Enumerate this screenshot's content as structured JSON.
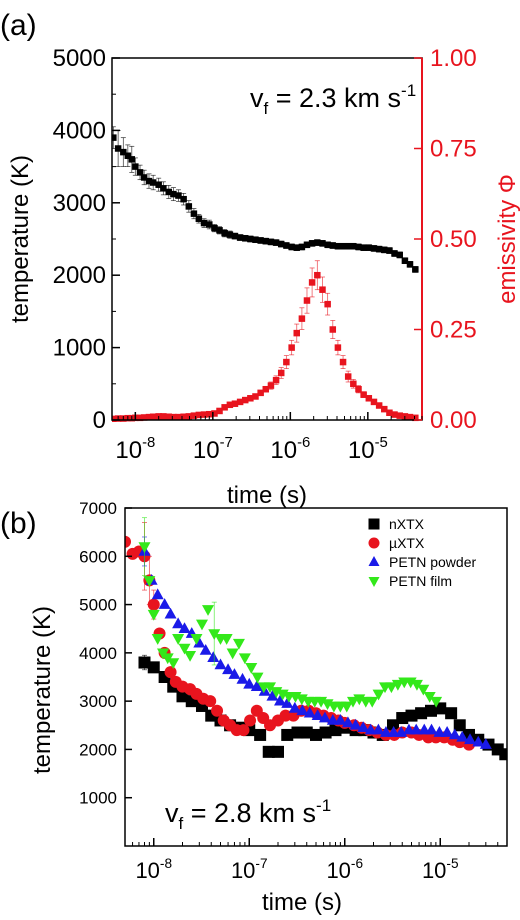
{
  "chart_data": [
    {
      "panel_label": "(a)",
      "type": "scatter",
      "annotation": {
        "prefix": "v",
        "subscript": "f",
        "middle": " = 2.3 km s",
        "superscript": "-1"
      },
      "xlabel": "time (s)",
      "x_scale": "log",
      "xlim": [
        5e-09,
        5e-05
      ],
      "x_ticks": [
        {
          "exp": "-8",
          "value": 1e-08
        },
        {
          "exp": "-7",
          "value": 1e-07
        },
        {
          "exp": "-6",
          "value": 1e-06
        },
        {
          "exp": "-5",
          "value": 1e-05
        }
      ],
      "x_tick_base": "10",
      "ylabel": "temperature (K)",
      "ylim": [
        0,
        5000
      ],
      "y_ticks": [
        "0",
        "1000",
        "2000",
        "3000",
        "4000",
        "5000"
      ],
      "y2label": "emissivity Φ",
      "y2lim": [
        0,
        1
      ],
      "y2_ticks": [
        "0.00",
        "0.25",
        "0.50",
        "0.75",
        "1.00"
      ],
      "y2_color": "#e8141e",
      "series": [
        {
          "color": "#000000",
          "marker": "square",
          "axis": "left",
          "x": [
            5.2e-09,
            6e-09,
            7e-09,
            8e-09,
            9e-09,
            1e-08,
            1.15e-08,
            1.3e-08,
            1.5e-08,
            1.7e-08,
            2e-08,
            2.3e-08,
            2.7e-08,
            3.1e-08,
            3.6e-08,
            4.2e-08,
            4.9e-08,
            5.7e-08,
            6.6e-08,
            7.7e-08,
            9e-08,
            1.05e-07,
            1.22e-07,
            1.42e-07,
            1.66e-07,
            1.93e-07,
            2.25e-07,
            2.62e-07,
            3.05e-07,
            3.55e-07,
            4.14e-07,
            4.82e-07,
            5.62e-07,
            6.55e-07,
            7.63e-07,
            8.89e-07,
            1.04e-06,
            1.21e-06,
            1.41e-06,
            1.64e-06,
            1.91e-06,
            2.23e-06,
            2.6e-06,
            3.03e-06,
            3.53e-06,
            4.11e-06,
            4.79e-06,
            5.58e-06,
            6.5e-06,
            7.58e-06,
            8.83e-06,
            1.03e-05,
            1.2e-05,
            1.4e-05,
            1.63e-05,
            1.9e-05,
            2.21e-05,
            2.58e-05,
            3.01e-05,
            3.5e-05,
            4.1e-05
          ],
          "y": [
            3900,
            3750,
            3700,
            3650,
            3600,
            3500,
            3420,
            3350,
            3300,
            3280,
            3250,
            3200,
            3150,
            3120,
            3100,
            3050,
            2950,
            2850,
            2780,
            2720,
            2700,
            2650,
            2620,
            2580,
            2560,
            2540,
            2520,
            2510,
            2500,
            2490,
            2480,
            2470,
            2460,
            2450,
            2430,
            2410,
            2390,
            2380,
            2390,
            2420,
            2440,
            2450,
            2440,
            2420,
            2410,
            2400,
            2400,
            2400,
            2400,
            2390,
            2380,
            2380,
            2370,
            2360,
            2350,
            2340,
            2300,
            2280,
            2200,
            2150,
            2080
          ],
          "err": [
            150,
            250,
            200,
            150,
            180,
            120,
            100,
            100,
            100,
            100,
            90,
            90,
            90,
            90,
            80,
            80,
            80,
            70,
            60,
            60,
            60,
            50,
            50,
            50,
            50,
            40,
            40,
            40,
            40,
            40,
            40,
            40,
            40,
            40,
            40,
            40,
            40,
            40,
            40,
            40,
            40,
            40,
            40,
            40,
            40,
            40,
            40,
            40,
            40,
            40,
            40,
            40,
            40,
            40,
            40,
            40,
            40,
            40,
            40,
            40,
            40
          ]
        },
        {
          "color": "#e8141e",
          "marker": "square",
          "axis": "right",
          "x": [
            5.2e-09,
            6e-09,
            7e-09,
            8e-09,
            9e-09,
            1e-08,
            1.15e-08,
            1.3e-08,
            1.5e-08,
            1.7e-08,
            2e-08,
            2.3e-08,
            2.7e-08,
            3.1e-08,
            3.6e-08,
            4.2e-08,
            4.9e-08,
            5.7e-08,
            6.6e-08,
            7.7e-08,
            9e-08,
            1.05e-07,
            1.22e-07,
            1.42e-07,
            1.66e-07,
            1.93e-07,
            2.25e-07,
            2.62e-07,
            3.05e-07,
            3.55e-07,
            4.14e-07,
            4.82e-07,
            5.62e-07,
            6.55e-07,
            7.63e-07,
            8.89e-07,
            1.04e-06,
            1.21e-06,
            1.41e-06,
            1.64e-06,
            1.91e-06,
            2.23e-06,
            2.6e-06,
            3.03e-06,
            3.53e-06,
            4.11e-06,
            4.79e-06,
            5.58e-06,
            6.5e-06,
            7.58e-06,
            8.83e-06,
            1.03e-05,
            1.2e-05,
            1.4e-05,
            1.63e-05,
            1.9e-05,
            2.21e-05,
            2.58e-05,
            3.01e-05,
            3.5e-05,
            4.1e-05
          ],
          "y": [
            0.003,
            0.004,
            0.004,
            0.005,
            0.005,
            0.006,
            0.006,
            0.007,
            0.008,
            0.009,
            0.01,
            0.01,
            0.009,
            0.008,
            0.008,
            0.009,
            0.01,
            0.012,
            0.014,
            0.015,
            0.016,
            0.018,
            0.025,
            0.035,
            0.042,
            0.045,
            0.05,
            0.055,
            0.06,
            0.065,
            0.075,
            0.085,
            0.095,
            0.11,
            0.13,
            0.16,
            0.2,
            0.24,
            0.28,
            0.33,
            0.38,
            0.4,
            0.36,
            0.32,
            0.25,
            0.2,
            0.16,
            0.12,
            0.1,
            0.085,
            0.07,
            0.06,
            0.05,
            0.04,
            0.03,
            0.02,
            0.015,
            0.012,
            0.01,
            0.008,
            0.006
          ],
          "err": [
            0,
            0,
            0,
            0,
            0,
            0,
            0,
            0,
            0,
            0,
            0,
            0,
            0,
            0,
            0,
            0,
            0,
            0,
            0,
            0,
            0,
            0,
            0,
            0,
            0,
            0,
            0,
            0,
            0,
            0,
            0,
            0,
            0.01,
            0.012,
            0.015,
            0.018,
            0.02,
            0.025,
            0.03,
            0.035,
            0.04,
            0.04,
            0.035,
            0.03,
            0.025,
            0.02,
            0.018,
            0.015,
            0.012,
            0.01,
            0.008,
            0.006,
            0.005,
            0,
            0,
            0,
            0,
            0,
            0,
            0,
            0
          ]
        }
      ]
    },
    {
      "panel_label": "(b)",
      "type": "scatter",
      "annotation": {
        "prefix": "v",
        "subscript": "f",
        "middle": " = 2.8 km s",
        "superscript": "-1"
      },
      "xlabel": "time (s)",
      "x_scale": "log",
      "xlim": [
        5e-09,
        5e-05
      ],
      "x_ticks": [
        {
          "exp": "-8",
          "value": 1e-08
        },
        {
          "exp": "-7",
          "value": 1e-07
        },
        {
          "exp": "-6",
          "value": 1e-06
        },
        {
          "exp": "-5",
          "value": 1e-05
        }
      ],
      "x_tick_base": "10",
      "ylabel": "temperature (K)",
      "ylim": [
        0,
        7000
      ],
      "y_ticks": [
        "1000",
        "2000",
        "3000",
        "4000",
        "5000",
        "6000",
        "7000"
      ],
      "legend_position": "top-right",
      "series": [
        {
          "name": "nXTX",
          "color": "#000000",
          "marker": "square",
          "x": [
            8e-09,
            1e-08,
            1.3e-08,
            1.6e-08,
            2e-08,
            2.5e-08,
            3.2e-08,
            4e-08,
            5e-08,
            6.3e-08,
            8e-08,
            1e-07,
            1.3e-07,
            1.6e-07,
            2e-07,
            2.5e-07,
            3.2e-07,
            4e-07,
            5e-07,
            6.3e-07,
            8e-07,
            1e-06,
            1.3e-06,
            1.6e-06,
            2e-06,
            2.5e-06,
            3.2e-06,
            4e-06,
            5e-06,
            6.3e-06,
            8e-06,
            1e-05,
            1.3e-05,
            1.6e-05,
            2e-05,
            2.5e-05,
            3.2e-05,
            4e-05,
            4.8e-05
          ],
          "y": [
            3800,
            3700,
            3500,
            3300,
            3100,
            3000,
            2900,
            2700,
            2600,
            2500,
            2450,
            2400,
            2300,
            1950,
            1950,
            2300,
            2350,
            2350,
            2300,
            2350,
            2400,
            2450,
            2400,
            2400,
            2350,
            2300,
            2500,
            2650,
            2700,
            2750,
            2800,
            2850,
            2750,
            2500,
            2300,
            2200,
            2100,
            2000,
            1900
          ],
          "err": [
            150,
            0,
            0,
            0,
            0,
            0,
            0,
            0,
            0,
            0,
            0,
            0,
            0,
            80,
            80,
            0,
            0,
            0,
            0,
            0,
            0,
            0,
            0,
            0,
            0,
            0,
            0,
            0,
            0,
            0,
            0,
            0,
            0,
            0,
            0,
            0,
            0,
            0,
            0
          ]
        },
        {
          "name": "µXTX",
          "color": "#e8141e",
          "marker": "circle",
          "x": [
            5e-09,
            6e-09,
            7e-09,
            8e-09,
            9e-09,
            1e-08,
            1.15e-08,
            1.3e-08,
            1.5e-08,
            1.7e-08,
            2e-08,
            2.4e-08,
            2.8e-08,
            3.3e-08,
            3.9e-08,
            4.6e-08,
            5.4e-08,
            6.3e-08,
            7.4e-08,
            8.7e-08,
            1.02e-07,
            1.2e-07,
            1.4e-07,
            1.65e-07,
            2e-07,
            2.4e-07,
            2.9e-07,
            3.5e-07,
            4.2e-07,
            5e-07,
            6e-07,
            7.2e-07,
            8.6e-07,
            1e-06,
            1.25e-06,
            1.5e-06,
            1.8e-06,
            2.2e-06,
            2.7e-06,
            3.3e-06,
            4e-06,
            5e-06,
            6e-06,
            7.5e-06,
            9e-06,
            1.1e-05,
            1.35e-05,
            1.6e-05,
            2e-05
          ],
          "y": [
            6300,
            6050,
            6100,
            6000,
            5500,
            5000,
            4400,
            4000,
            3600,
            3400,
            3300,
            3250,
            3150,
            3050,
            3000,
            2800,
            2600,
            2500,
            2400,
            2400,
            2600,
            2800,
            2650,
            2500,
            2600,
            2700,
            2700,
            2800,
            2800,
            2750,
            2700,
            2650,
            2600,
            2550,
            2500,
            2450,
            2400,
            2350,
            2300,
            2300,
            2350,
            2350,
            2300,
            2250,
            2250,
            2250,
            2200,
            2150,
            2100
          ],
          "err": [
            0,
            0,
            0,
            700,
            500,
            300,
            0,
            0,
            0,
            0,
            0,
            0,
            0,
            0,
            0,
            0,
            0,
            0,
            0,
            0,
            0,
            0,
            0,
            0,
            0,
            0,
            0,
            0,
            0,
            0,
            0,
            0,
            0,
            0,
            0,
            0,
            0,
            0,
            0,
            0,
            0,
            0,
            0,
            0,
            0,
            0,
            0,
            0,
            0
          ]
        },
        {
          "name": "PETN powder",
          "color": "#1a1ae8",
          "marker": "triangle-up",
          "x": [
            8e-09,
            9.5e-09,
            1.1e-08,
            1.3e-08,
            1.5e-08,
            1.8e-08,
            2.1e-08,
            2.5e-08,
            3e-08,
            3.5e-08,
            4.2e-08,
            5e-08,
            6e-08,
            7e-08,
            8.5e-08,
            1e-07,
            1.2e-07,
            1.45e-07,
            1.75e-07,
            2.1e-07,
            2.5e-07,
            3e-07,
            3.6e-07,
            4.3e-07,
            5.2e-07,
            6.2e-07,
            7.5e-07,
            9e-07,
            1.08e-06,
            1.3e-06,
            1.56e-06,
            1.87e-06,
            2.25e-06,
            2.7e-06,
            3.25e-06,
            3.9e-06,
            4.7e-06,
            5.6e-06,
            6.8e-06,
            8.1e-06,
            9.8e-06,
            1.18e-05,
            1.42e-05,
            1.7e-05,
            2.05e-05,
            2.5e-05,
            3e-05
          ],
          "y": [
            6100,
            5500,
            5200,
            5000,
            4800,
            4600,
            4500,
            4400,
            4200,
            4050,
            3900,
            3750,
            3650,
            3550,
            3450,
            3350,
            3300,
            3200,
            3100,
            3000,
            2950,
            2850,
            2800,
            2750,
            2700,
            2650,
            2600,
            2600,
            2550,
            2500,
            2450,
            2400,
            2400,
            2350,
            2350,
            2350,
            2400,
            2400,
            2400,
            2400,
            2350,
            2350,
            2300,
            2250,
            2200,
            2150,
            2100
          ],
          "err": [
            300,
            0,
            0,
            0,
            0,
            0,
            0,
            0,
            0,
            0,
            0,
            0,
            0,
            0,
            0,
            0,
            0,
            0,
            0,
            0,
            0,
            0,
            0,
            0,
            0,
            0,
            0,
            0,
            0,
            0,
            0,
            0,
            0,
            0,
            0,
            0,
            0,
            0,
            0,
            0,
            0,
            0,
            0,
            0,
            0,
            0,
            0
          ]
        },
        {
          "name": "PETN film",
          "color": "#33e81a",
          "marker": "triangle-down",
          "x": [
            8e-09,
            9e-09,
            1e-08,
            1.1e-08,
            1.25e-08,
            1.4e-08,
            1.6e-08,
            1.8e-08,
            2.1e-08,
            2.4e-08,
            2.8e-08,
            3.2e-08,
            3.7e-08,
            4.3e-08,
            5e-08,
            5.8e-08,
            6.7e-08,
            7.8e-08,
            9e-08,
            1.05e-07,
            1.22e-07,
            1.42e-07,
            1.65e-07,
            1.92e-07,
            2.24e-07,
            2.6e-07,
            3.05e-07,
            3.55e-07,
            4.15e-07,
            4.85e-07,
            5.65e-07,
            6.6e-07,
            7.7e-07,
            9e-07,
            1.05e-06,
            1.22e-06,
            1.42e-06,
            1.66e-06,
            1.94e-06,
            2.26e-06,
            2.64e-06,
            3.08e-06,
            3.6e-06,
            4.2e-06,
            4.9e-06,
            5.7e-06,
            6.65e-06,
            7.75e-06,
            9.05e-06
          ],
          "y": [
            6200,
            5500,
            4800,
            4300,
            4000,
            3900,
            3800,
            4300,
            4100,
            3950,
            4300,
            4600,
            4900,
            4400,
            4300,
            4300,
            4000,
            4200,
            3900,
            3700,
            3500,
            3300,
            3300,
            3200,
            3150,
            3100,
            3100,
            3050,
            3000,
            3000,
            3000,
            2950,
            2900,
            2900,
            2900,
            3000,
            3050,
            3000,
            3000,
            3150,
            3300,
            3300,
            3350,
            3400,
            3400,
            3350,
            3250,
            3100,
            3000
          ],
          "err": [
            600,
            0,
            0,
            0,
            0,
            0,
            0,
            0,
            0,
            0,
            0,
            0,
            0,
            650,
            0,
            0,
            0,
            0,
            0,
            0,
            0,
            0,
            0,
            0,
            0,
            0,
            0,
            0,
            0,
            0,
            0,
            0,
            0,
            0,
            0,
            0,
            0,
            0,
            0,
            0,
            0,
            0,
            0,
            0,
            0,
            0,
            0,
            0,
            0
          ]
        }
      ]
    }
  ]
}
